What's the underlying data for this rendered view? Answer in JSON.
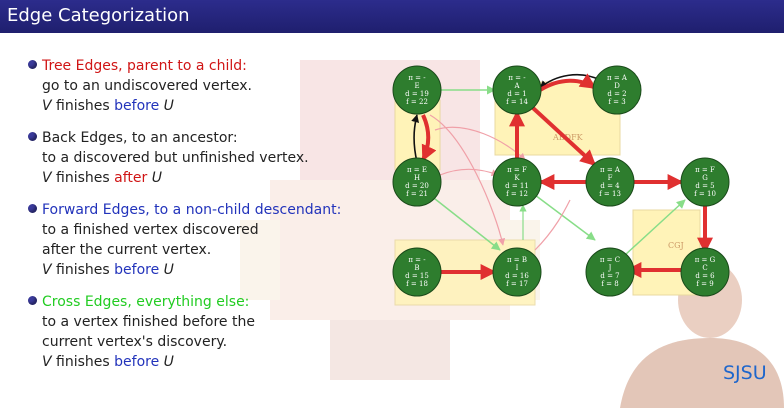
{
  "header": {
    "title": "Edge Categorization"
  },
  "bullets": [
    {
      "head": "Tree Edges, parent to a child:",
      "head_color": "#d01515",
      "lines": [
        "go to an undiscovered vertex."
      ],
      "finish": {
        "v": "V",
        "mid": " finishes ",
        "rel": "before",
        "rel_color": "#2233bb",
        "u": " U"
      }
    },
    {
      "head": "Back Edges, to an ancestor:",
      "head_color": "#222222",
      "lines": [
        "to a discovered but unfinished vertex."
      ],
      "finish": {
        "v": "V",
        "mid": " finishes ",
        "rel": "after",
        "rel_color": "#d01515",
        "u": " U"
      }
    },
    {
      "head": "Forward Edges, to a non-child descendant:",
      "head_color": "#2233bb",
      "lines": [
        "to a finished vertex discovered",
        "after the current vertex."
      ],
      "finish": {
        "v": "V",
        "mid": " finishes ",
        "rel": "before",
        "rel_color": "#2233bb",
        "u": " U"
      }
    },
    {
      "head": "Cross Edges, everything else:",
      "head_color": "#22cc22",
      "lines": [
        "to a vertex finished before the",
        "current vertex's discovery."
      ],
      "finish": {
        "v": "V",
        "mid": " finishes ",
        "rel": "before",
        "rel_color": "#2233bb",
        "u": " U"
      }
    }
  ],
  "graph": {
    "groups": [
      "ABDFK",
      "CGJ"
    ],
    "nodes": [
      {
        "id": "E",
        "pi": "π = -",
        "d": "d = 19",
        "f": "f = 22"
      },
      {
        "id": "A",
        "pi": "π = -",
        "d": "d = 1",
        "f": "f = 14"
      },
      {
        "id": "D",
        "pi": "π = A",
        "d": "d = 2",
        "f": "f = 3"
      },
      {
        "id": "H",
        "pi": "π = E",
        "d": "d = 20",
        "f": "f = 21"
      },
      {
        "id": "K",
        "pi": "π = F",
        "d": "d = 11",
        "f": "f = 12"
      },
      {
        "id": "F",
        "pi": "π = A",
        "d": "d = 4",
        "f": "f = 13"
      },
      {
        "id": "G",
        "pi": "π = F",
        "d": "d = 5",
        "f": "f = 10"
      },
      {
        "id": "B",
        "pi": "π = -",
        "d": "d = 15",
        "f": "f = 18"
      },
      {
        "id": "I",
        "pi": "π = B",
        "d": "d = 16",
        "f": "f = 17"
      },
      {
        "id": "J",
        "pi": "π = C",
        "d": "d = 7",
        "f": "f = 8"
      },
      {
        "id": "C",
        "pi": "π = G",
        "d": "d = 6",
        "f": "f = 9"
      }
    ]
  },
  "colors": {
    "header": "#23237a",
    "node_fill": "#2e7d2e",
    "tree_edge": "#e03030",
    "cross_edge": "#88dd88",
    "back_edge": "#111111",
    "forward_edge": "#f0a0a8",
    "group_fill": "#fff3b8"
  },
  "logo": "SJSU"
}
